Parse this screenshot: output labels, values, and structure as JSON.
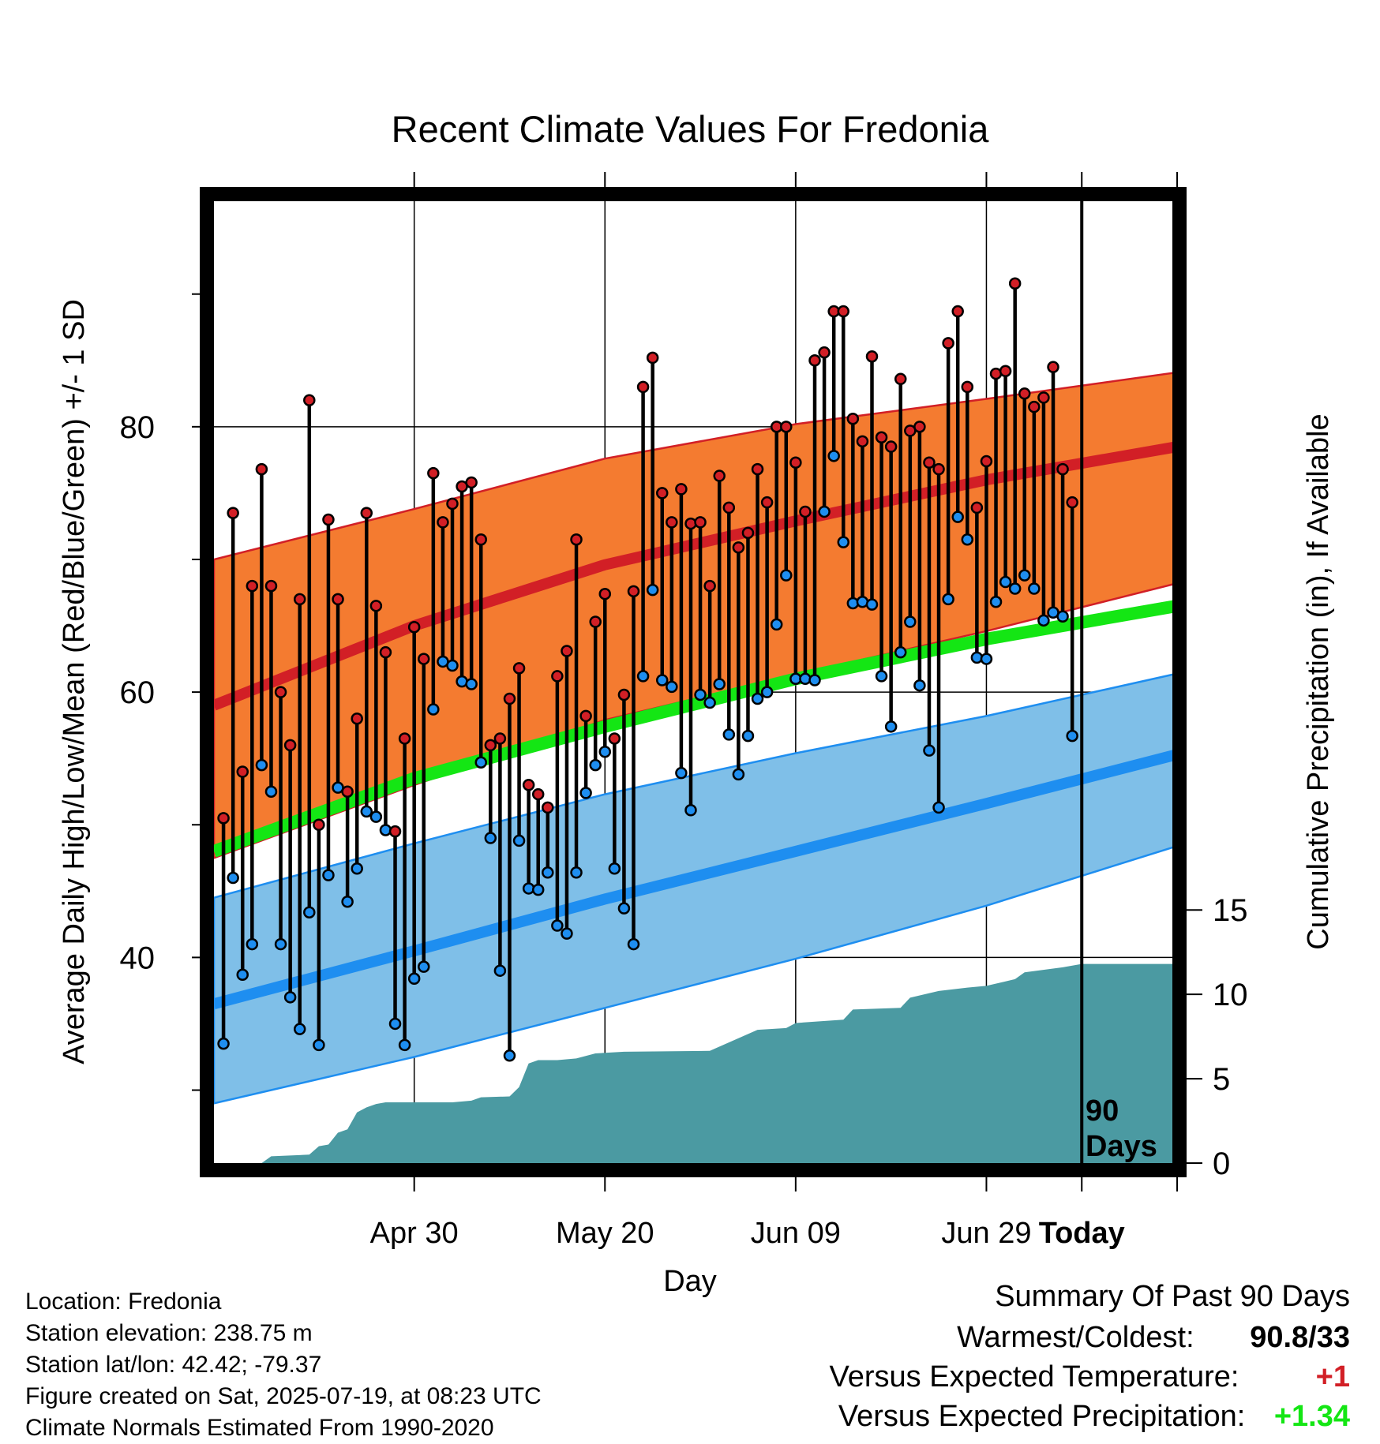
{
  "chart_data": {
    "type": "line",
    "title": "Recent Climate Values For Fredonia",
    "xlabel": "Day",
    "ylabel": "Average Daily High/Low/Mean (Red/Blue/Green) +/- 1 SD",
    "y2label": "Cumulative Precipitation (in), If Available",
    "xticks": [
      "Apr 30",
      "May 20",
      "Jun 09",
      "Jun 29",
      "Today"
    ],
    "yticks": [
      "40",
      "60",
      "80"
    ],
    "y2ticks": [
      "0",
      "5",
      "10",
      "15"
    ],
    "ylim": [
      24.5,
      97
    ],
    "y2lim": [
      0,
      57
    ],
    "xlim_days": [
      -91,
      9.5
    ],
    "days_marker_label": [
      "90",
      "Days"
    ],
    "grid": true,
    "colors": {
      "high_band": "#f47b30",
      "high_line": "#d21f26",
      "low_band": "#7fbfe8",
      "low_line": "#1e8ef0",
      "mean_line": "#14e614",
      "precip": "#4b9aa2",
      "high_point": "#d21f26",
      "low_point": "#1e8ef0"
    },
    "normal_high": {
      "x": [
        -91,
        -70,
        -50,
        -30,
        -10,
        10,
        30,
        40,
        50,
        60,
        70,
        80,
        90,
        100
      ],
      "mean": [
        59,
        65,
        69.6,
        72.9,
        76,
        78.5,
        80.2,
        80.9,
        81.3,
        81.6,
        81.7,
        81.8,
        81.6,
        81.4
      ],
      "upper": [
        70,
        73.8,
        77.6,
        80.2,
        82.1,
        84.1,
        85.6,
        86.2,
        86.8,
        87.2,
        87.4,
        87.5,
        87.5,
        87.2
      ],
      "lower": [
        47.5,
        53,
        57.9,
        61.3,
        64.6,
        68.2,
        71.3,
        72.5,
        73.7,
        74.6,
        75.3,
        75.7,
        75.9,
        75.8
      ]
    },
    "normal_mean": {
      "x": [
        -91,
        -70,
        -50,
        -30,
        -10,
        10,
        30,
        50,
        70,
        90,
        100
      ],
      "values": [
        48,
        53.5,
        57.4,
        61,
        64,
        66.5,
        68.8,
        70.4,
        71.1,
        71.3,
        71
      ]
    },
    "normal_low": {
      "x": [
        -91,
        -70,
        -50,
        -30,
        -10,
        10,
        30,
        50,
        70,
        90,
        100
      ],
      "mean": [
        36.5,
        40.5,
        44.4,
        48,
        51.6,
        55.3,
        58.1,
        59.9,
        60.7,
        60.8,
        60.7
      ],
      "upper": [
        44.5,
        48.6,
        52.3,
        55.4,
        58.2,
        61.4,
        63.8,
        65.7,
        66.5,
        66.6,
        66.4
      ],
      "lower": [
        29,
        32.5,
        36.2,
        39.9,
        43.9,
        48.4,
        51.7,
        53.6,
        54.6,
        55,
        55
      ]
    },
    "days": [
      -90,
      -89,
      -88,
      -87,
      -86,
      -85,
      -84,
      -83,
      -82,
      -81,
      -80,
      -79,
      -78,
      -77,
      -76,
      -75,
      -74,
      -73,
      -72,
      -71,
      -70,
      -69,
      -68,
      -67,
      -66,
      -65,
      -64,
      -63,
      -62,
      -61,
      -60,
      -59,
      -58,
      -57,
      -56,
      -55,
      -54,
      -53,
      -52,
      -51,
      -50,
      -49,
      -48,
      -47,
      -46,
      -45,
      -44,
      -43,
      -42,
      -41,
      -40,
      -39,
      -38,
      -37,
      -36,
      -35,
      -34,
      -33,
      -32,
      -31,
      -30,
      -29,
      -28,
      -27,
      -26,
      -25,
      -24,
      -23,
      -22,
      -21,
      -20,
      -19,
      -18,
      -17,
      -16,
      -15,
      -14,
      -13,
      -12,
      -11,
      -10,
      -9,
      -8,
      -7,
      -6,
      -5,
      -4,
      -3,
      -2,
      -1
    ],
    "highs": [
      50.5,
      73.5,
      54,
      68,
      76.8,
      68,
      60,
      56,
      67,
      82,
      50,
      73,
      67,
      52.5,
      58,
      73.5,
      66.5,
      63,
      49.5,
      56.5,
      64.9,
      62.5,
      76.5,
      72.8,
      74.2,
      75.5,
      75.8,
      71.5,
      56,
      56.5,
      59.5,
      61.8,
      53,
      52.3,
      51.3,
      61.2,
      63.1,
      71.5,
      58.2,
      65.3,
      67.4,
      56.5,
      59.8,
      67.6,
      83,
      85.2,
      75,
      72.8,
      75.3,
      72.7,
      72.8,
      68,
      76.3,
      73.9,
      70.9,
      72,
      76.8,
      74.3,
      80,
      80,
      77.3,
      73.6,
      85,
      85.6,
      88.7,
      88.7,
      80.6,
      78.9,
      85.3,
      79.2,
      78.5,
      83.6,
      79.7,
      80,
      77.3,
      76.8,
      86.3,
      88.7,
      83,
      73.9,
      77.4,
      84,
      84.2,
      90.8,
      82.5,
      81.5,
      82.2,
      84.5,
      76.8,
      74.3
    ],
    "lows": [
      33.5,
      46,
      38.7,
      41,
      54.5,
      52.5,
      41,
      37,
      34.6,
      43.4,
      33.4,
      46.2,
      52.8,
      44.2,
      46.7,
      51,
      50.6,
      49.6,
      35,
      33.4,
      38.4,
      39.3,
      58.7,
      62.3,
      62,
      60.8,
      60.6,
      54.7,
      49,
      39,
      32.6,
      48.8,
      45.2,
      45.1,
      46.4,
      42.4,
      41.8,
      46.4,
      52.4,
      54.5,
      55.5,
      46.7,
      43.7,
      41,
      61.2,
      67.7,
      60.9,
      60.4,
      53.9,
      51.1,
      59.8,
      59.2,
      60.6,
      56.8,
      53.8,
      56.7,
      59.5,
      60,
      65.1,
      68.8,
      61,
      61,
      60.9,
      73.6,
      77.8,
      71.3,
      66.7,
      66.8,
      66.6,
      61.2,
      57.4,
      63,
      65.3,
      60.5,
      55.6,
      51.3,
      67,
      73.2,
      71.5,
      62.6,
      62.5,
      66.8,
      68.3,
      67.8,
      68.8,
      67.8,
      65.4,
      66,
      65.7,
      56.7
    ],
    "precip_x": [
      -86,
      -85,
      -81,
      -80,
      -79,
      -78,
      -77,
      -76,
      -75,
      -74,
      -73,
      -66,
      -64,
      -63,
      -60,
      -59,
      -58,
      -57,
      -55,
      -53,
      -51,
      -48,
      -39,
      -34,
      -31,
      -30,
      -25,
      -24,
      -19,
      -18,
      -15,
      -12,
      -10,
      -7,
      -6,
      -2,
      0,
      9.5
    ],
    "precip_values": [
      0,
      0.4,
      0.5,
      1,
      1.1,
      1.8,
      2,
      3,
      3.3,
      3.5,
      3.6,
      3.6,
      3.7,
      3.9,
      3.95,
      4.5,
      5.9,
      6.1,
      6.1,
      6.2,
      6.5,
      6.6,
      6.65,
      7.9,
      8,
      8.3,
      8.5,
      9.1,
      9.2,
      9.8,
      10.2,
      10.4,
      10.5,
      10.9,
      11.3,
      11.6,
      11.8,
      11.8
    ]
  },
  "info": {
    "location": "Location: Fredonia",
    "elevation": "Station elevation: 238.75 m",
    "latlon": "Station lat/lon: 42.42; -79.37",
    "created": "Figure created on Sat, 2025-07-19, at 08:23 UTC",
    "normals": "Climate Normals Estimated From 1990-2020"
  },
  "summary": {
    "heading": "Summary Of Past 90 Days",
    "warmest_label": "Warmest/Coldest:",
    "warmest_value": "90.8/33",
    "temp_label": "Versus Expected Temperature:",
    "temp_value": "+1",
    "temp_color": "#d21f26",
    "precip_label": "Versus Expected Precipitation:",
    "precip_value": "+1.34",
    "precip_color": "#14e614"
  }
}
